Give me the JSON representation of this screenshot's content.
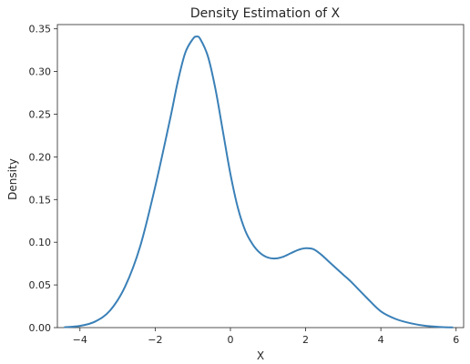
{
  "chart_data": {
    "type": "line",
    "title": "Density Estimation of X",
    "xlabel": "X",
    "ylabel": "Density",
    "xlim": [
      -4.6,
      6.2
    ],
    "ylim": [
      0,
      0.355
    ],
    "grid": false,
    "legend": "none",
    "xticks": [
      -4,
      -2,
      0,
      2,
      4,
      6
    ],
    "xtick_labels": [
      "−4",
      "−2",
      "0",
      "2",
      "4",
      "6"
    ],
    "yticks": [
      0,
      0.05,
      0.1,
      0.15,
      0.2,
      0.25,
      0.3,
      0.35
    ],
    "ytick_labels": [
      "0.00",
      "0.05",
      "0.10",
      "0.15",
      "0.20",
      "0.25",
      "0.30",
      "0.35"
    ],
    "series": [
      {
        "color": "#3a80b7",
        "x": [
          -4.4,
          -4.0,
          -3.6,
          -3.2,
          -2.8,
          -2.4,
          -2.0,
          -1.6,
          -1.4,
          -1.2,
          -1.0,
          -0.9,
          -0.8,
          -0.6,
          -0.4,
          -0.2,
          0.0,
          0.2,
          0.4,
          0.6,
          0.8,
          1.0,
          1.2,
          1.4,
          1.6,
          1.8,
          2.0,
          2.2,
          2.4,
          2.6,
          2.8,
          3.0,
          3.2,
          3.6,
          4.0,
          4.4,
          4.8,
          5.2,
          5.6,
          5.9
        ],
        "y": [
          0.0005,
          0.002,
          0.007,
          0.02,
          0.048,
          0.095,
          0.165,
          0.245,
          0.288,
          0.322,
          0.338,
          0.341,
          0.338,
          0.318,
          0.28,
          0.23,
          0.18,
          0.14,
          0.113,
          0.097,
          0.087,
          0.082,
          0.081,
          0.083,
          0.087,
          0.091,
          0.093,
          0.092,
          0.086,
          0.078,
          0.07,
          0.062,
          0.054,
          0.036,
          0.019,
          0.01,
          0.005,
          0.002,
          0.0007,
          0.0002
        ]
      }
    ]
  }
}
